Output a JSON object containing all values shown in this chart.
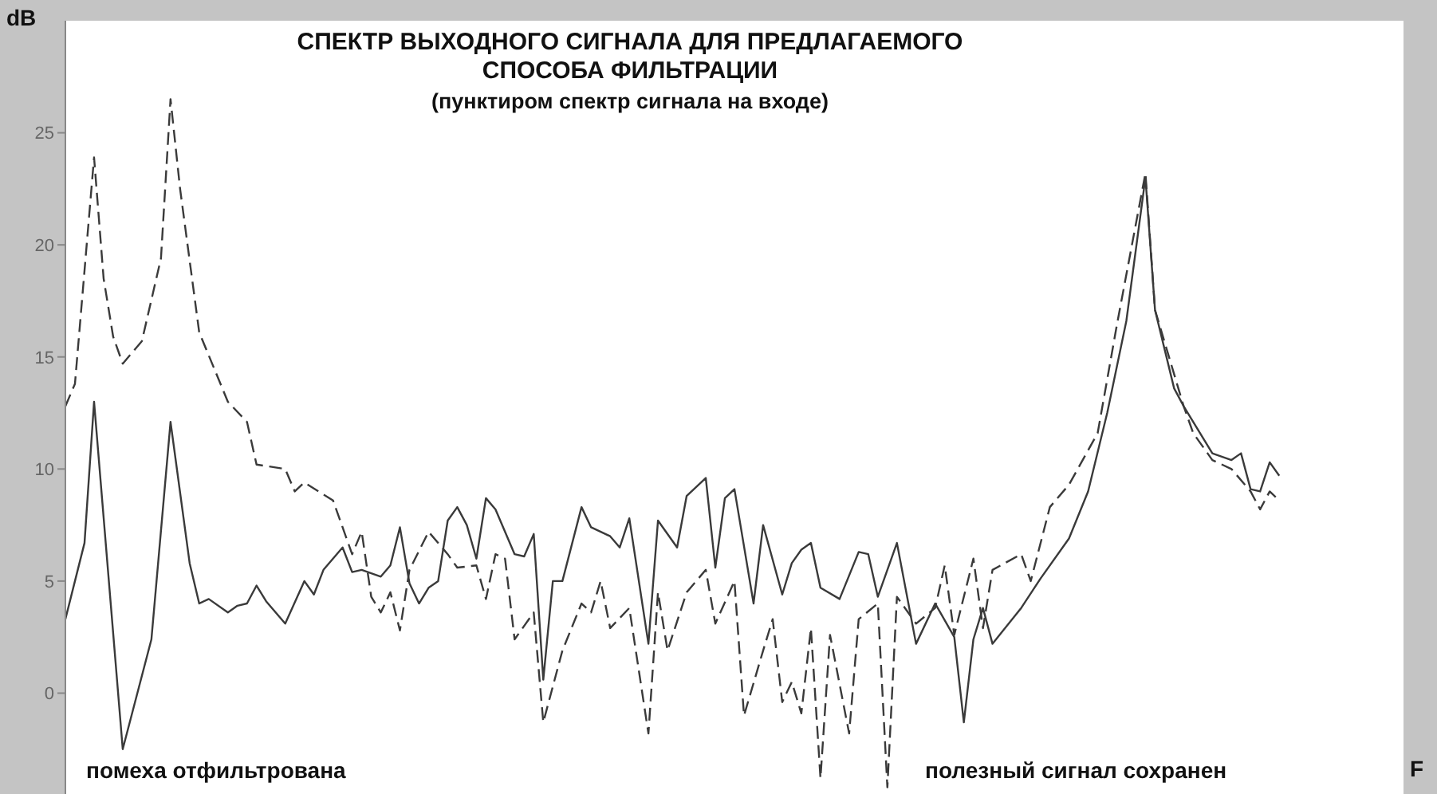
{
  "chart_data": {
    "type": "line",
    "title": "СПЕКТР ВЫХОДНОГО СИГНАЛА ДЛЯ ПРЕДЛАГАЕМОГО СПОСОБА ФИЛЬТРАЦИИ",
    "subtitle": "(пунктиром спектр сигнала на входе)",
    "ylabel": "dB",
    "xlabel": "F",
    "annotations": [
      "помеха отфильтрована",
      "полезный сигнал сохранен"
    ],
    "categories": [
      null,
      null,
      null,
      null,
      null,
      null,
      null,
      null,
      null,
      null,
      null,
      null,
      null,
      null,
      null,
      null,
      null,
      null,
      null,
      null,
      null,
      null,
      null,
      null,
      null,
      null,
      null,
      null,
      null,
      null,
      null,
      null,
      null,
      null,
      null,
      null,
      null,
      null,
      null,
      null,
      null,
      null,
      null,
      null,
      null,
      null,
      null,
      null,
      null,
      null,
      null,
      null,
      null,
      null,
      null,
      null,
      null,
      null,
      null,
      null,
      null,
      null,
      null,
      null,
      null,
      null,
      null,
      null,
      null,
      null,
      null,
      null,
      null,
      null,
      null,
      null,
      null,
      null,
      null,
      null,
      null,
      null,
      null,
      null,
      null,
      null,
      null,
      null,
      null,
      null,
      null,
      null,
      null,
      null,
      null,
      null,
      null,
      null,
      null,
      null,
      null,
      null,
      null,
      null,
      null,
      null,
      null,
      null,
      null,
      null,
      null,
      null,
      null,
      null,
      null,
      null,
      null,
      null,
      null,
      null,
      null,
      null,
      null,
      null,
      null,
      null,
      null,
      null,
      null,
      null,
      null,
      null,
      null,
      null,
      null,
      null,
      null,
      null,
      null,
      null,
      null
    ],
    "series": [
      {
        "color": "#3a3a3a",
        "line_style": "solid",
        "values": [
          3.3,
          5.0,
          6.7,
          13.0,
          null,
          null,
          -2.5,
          null,
          null,
          2.4,
          null,
          12.1,
          null,
          5.8,
          4.0,
          4.2,
          null,
          3.6,
          3.9,
          4.0,
          4.8,
          4.1,
          null,
          3.1,
          null,
          5.0,
          4.4,
          5.5,
          null,
          6.5,
          5.4,
          5.5,
          null,
          5.2,
          5.7,
          7.4,
          4.9,
          4.0,
          4.7,
          5.0,
          7.7,
          8.3,
          7.5,
          6.0,
          8.7,
          8.2,
          null,
          6.2,
          6.1,
          7.1,
          0.6,
          5.0,
          5.0,
          null,
          8.3,
          7.4,
          null,
          7.0,
          6.5,
          7.8,
          null,
          2.2,
          7.7,
          null,
          6.5,
          8.8,
          null,
          9.6,
          5.6,
          8.7,
          9.1,
          null,
          4.0,
          7.5,
          null,
          4.4,
          5.8,
          6.4,
          6.7,
          4.7,
          null,
          4.2,
          null,
          6.3,
          6.2,
          4.3,
          null,
          6.7,
          null,
          2.2,
          null,
          4.0,
          null,
          2.5,
          -1.3,
          2.4,
          3.8,
          2.2,
          null,
          null,
          3.8,
          null,
          5.1,
          null,
          null,
          6.9,
          null,
          9.0,
          null,
          12.5,
          null,
          16.6,
          null,
          23.0,
          17.1,
          null,
          13.6,
          12.8,
          null,
          null,
          10.7,
          null,
          10.4,
          10.7,
          9.1,
          9.0,
          10.3,
          9.7,
          null,
          null,
          null,
          null,
          null,
          null,
          null,
          null,
          null,
          null,
          null,
          null,
          null
        ]
      },
      {
        "color": "#3a3a3a",
        "line_style": "dashed",
        "values": [
          12.8,
          13.8,
          null,
          23.9,
          18.5,
          15.9,
          14.7,
          null,
          15.7,
          null,
          19.4,
          26.5,
          22.5,
          null,
          16.1,
          null,
          null,
          13.0,
          null,
          12.1,
          10.2,
          null,
          null,
          10.0,
          9.0,
          9.4,
          null,
          null,
          8.6,
          null,
          6.2,
          7.2,
          4.3,
          3.6,
          4.5,
          2.8,
          5.5,
          null,
          7.2,
          null,
          6.2,
          5.6,
          null,
          5.7,
          4.2,
          6.2,
          6.0,
          2.4,
          null,
          3.6,
          -1.3,
          null,
          1.9,
          null,
          4.0,
          3.6,
          5.0,
          2.9,
          null,
          3.8,
          null,
          -1.8,
          4.5,
          1.9,
          null,
          4.5,
          null,
          5.5,
          3.1,
          null,
          5.0,
          -1.0,
          null,
          1.9,
          3.3,
          -0.4,
          0.5,
          -0.9,
          2.9,
          -3.8,
          2.6,
          null,
          -1.8,
          3.3,
          null,
          4.0,
          -4.2,
          4.3,
          null,
          3.1,
          null,
          3.8,
          5.7,
          2.6,
          null,
          6.0,
          2.9,
          5.5,
          null,
          null,
          6.2,
          5.0,
          null,
          8.3,
          null,
          9.3,
          null,
          null,
          11.6,
          null,
          16.4,
          null,
          null,
          23.2,
          17.1,
          null,
          null,
          12.8,
          11.6,
          null,
          10.4,
          null,
          10.0,
          null,
          9.0,
          8.2,
          9.0,
          8.6,
          null,
          null,
          null,
          null,
          null,
          null,
          null,
          null,
          null,
          null,
          null,
          null,
          null
        ]
      }
    ],
    "ylim": [
      -4.5,
      30
    ],
    "yticks": [
      0,
      5,
      10,
      15,
      20,
      25
    ],
    "grid": false,
    "marker": "none",
    "tick_labels": "y"
  }
}
